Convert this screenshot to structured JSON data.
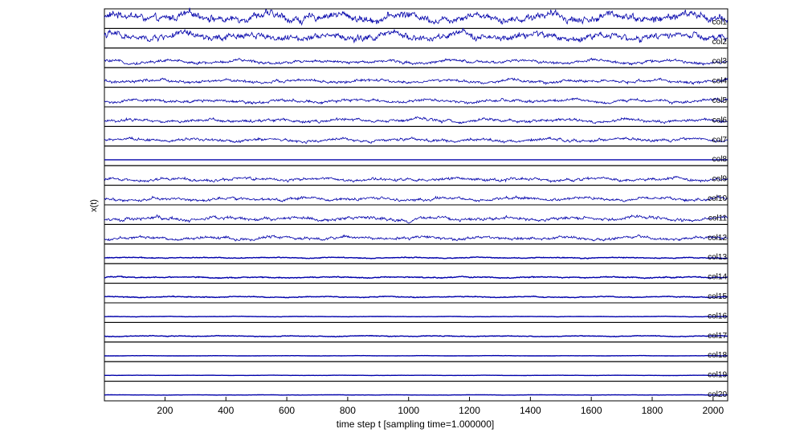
{
  "chart_data": {
    "type": "line",
    "xlabel": "time step t [sampling time=1.000000]",
    "ylabel": "x(t)",
    "xlim": [
      1,
      2048
    ],
    "x_ticks": [
      200,
      400,
      600,
      800,
      1000,
      1200,
      1400,
      1600,
      1800,
      2000
    ],
    "grid": false,
    "line_color": "#0000aa",
    "axes_color": "#000000",
    "n_samples": 2048,
    "series": [
      {
        "name": "col1",
        "amplitude": 0.9
      },
      {
        "name": "col2",
        "amplitude": 0.8
      },
      {
        "name": "col3",
        "amplitude": 0.35
      },
      {
        "name": "col4",
        "amplitude": 0.35
      },
      {
        "name": "col5",
        "amplitude": 0.35
      },
      {
        "name": "col6",
        "amplitude": 0.35
      },
      {
        "name": "col7",
        "amplitude": 0.35
      },
      {
        "name": "col8",
        "amplitude": 0.0
      },
      {
        "name": "col9",
        "amplitude": 0.35
      },
      {
        "name": "col10",
        "amplitude": 0.35
      },
      {
        "name": "col11",
        "amplitude": 0.4
      },
      {
        "name": "col12",
        "amplitude": 0.35
      },
      {
        "name": "col13",
        "amplitude": 0.1
      },
      {
        "name": "col14",
        "amplitude": 0.12
      },
      {
        "name": "col15",
        "amplitude": 0.1
      },
      {
        "name": "col16",
        "amplitude": 0.04
      },
      {
        "name": "col17",
        "amplitude": 0.08
      },
      {
        "name": "col18",
        "amplitude": 0.03
      },
      {
        "name": "col19",
        "amplitude": 0.02
      },
      {
        "name": "col20",
        "amplitude": 0.03
      }
    ]
  }
}
